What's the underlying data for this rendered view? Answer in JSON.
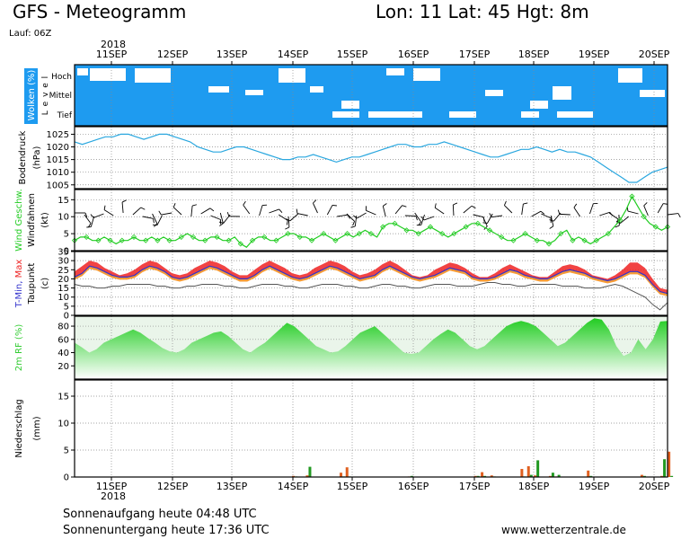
{
  "header": {
    "title": "GFS - Meteogramm",
    "location": "Lon: 11 Lat: 45 Hgt: 8m",
    "run": "Lauf: 06Z"
  },
  "footer": {
    "sunrise": "Sonnenaufgang heute 04:48 UTC",
    "sunset": "Sonnenuntergang heute 17:36 UTC",
    "source": "www.wetterzentrale.de"
  },
  "chart_data": {
    "type": "line",
    "year_label": "2018",
    "dates": [
      "11SEP",
      "12SEP",
      "13SEP",
      "14SEP",
      "15SEP",
      "16SEP",
      "17SEP",
      "18SEP",
      "19SEP",
      "20SEP"
    ],
    "colors": {
      "cloud": "#1E9BF0",
      "pressure": "#2AA7DF",
      "wind": "#22CC22",
      "tmax": "#EE2222",
      "tmin": "#3333CC",
      "taupunkt": "#555555",
      "orange": "#F59020",
      "rh": "#33CC33",
      "precip_orange": "#E06020",
      "precip_green": "#229922"
    },
    "panels": [
      {
        "id": "wolken",
        "ylabel": "Wolken (%)",
        "ylabel2": "L e v e l",
        "levels": [
          "Hoch",
          "Mittel",
          "Tief"
        ]
      },
      {
        "id": "bodendruck",
        "ylabel": "Bodendruck",
        "unit": "(hPa)",
        "yticks": [
          1005,
          1010,
          1015,
          1020,
          1025
        ],
        "ylim": [
          1003.5,
          1028
        ]
      },
      {
        "id": "wind",
        "ylabel": "Wind Geschw.",
        "ylabel2": "Windfahnen",
        "unit": "(kt)",
        "yticks": [
          0,
          5,
          10,
          15
        ],
        "ylim": [
          0,
          18
        ]
      },
      {
        "id": "temp",
        "ylabel": "T-Min, Max",
        "ylabel2": "Taupunkt",
        "unit": "(c)",
        "yticks": [
          0,
          5,
          10,
          15,
          20,
          25,
          30,
          35
        ],
        "ylim": [
          0,
          35
        ]
      },
      {
        "id": "rf",
        "ylabel": "2m RF (%)",
        "yticks": [
          20,
          40,
          60,
          80
        ],
        "ylim": [
          0,
          95
        ]
      },
      {
        "id": "niederschlag",
        "ylabel": "Niederschlag",
        "unit": "(mm)",
        "yticks": [
          0,
          5,
          10,
          15
        ],
        "ylim": [
          0,
          18
        ]
      }
    ],
    "pressure": [
      1022,
      1021,
      1022,
      1023,
      1024,
      1024,
      1025,
      1025,
      1024,
      1023,
      1024,
      1025,
      1025,
      1024,
      1023,
      1022,
      1020,
      1019,
      1018,
      1018,
      1019,
      1020,
      1020,
      1019,
      1018,
      1017,
      1016,
      1015,
      1015,
      1016,
      1016,
      1017,
      1016,
      1015,
      1014,
      1015,
      1016,
      1016,
      1017,
      1018,
      1019,
      1020,
      1021,
      1021,
      1020,
      1020,
      1021,
      1021,
      1022,
      1021,
      1020,
      1019,
      1018,
      1017,
      1016,
      1016,
      1017,
      1018,
      1019,
      1019,
      1020,
      1019,
      1018,
      1019,
      1018,
      1018,
      1017,
      1016,
      1014,
      1012,
      1010,
      1008,
      1006,
      1006,
      1008,
      1010,
      1011,
      1012
    ],
    "wind": [
      3,
      4,
      4,
      3,
      3,
      4,
      3,
      2,
      3,
      3,
      4,
      3,
      3,
      4,
      3,
      4,
      3,
      3,
      4,
      5,
      4,
      3,
      3,
      4,
      4,
      3,
      3,
      4,
      2,
      1,
      3,
      4,
      4,
      3,
      3,
      4,
      5,
      5,
      4,
      4,
      3,
      4,
      5,
      4,
      3,
      4,
      5,
      4,
      5,
      6,
      5,
      4,
      7,
      8,
      8,
      7,
      6,
      6,
      5,
      6,
      7,
      6,
      5,
      4,
      5,
      6,
      7,
      8,
      8,
      7,
      6,
      5,
      4,
      3,
      3,
      4,
      5,
      4,
      3,
      3,
      2,
      3,
      5,
      6,
      3,
      4,
      3,
      2,
      3,
      4,
      5,
      7,
      9,
      12,
      16,
      13,
      10,
      8,
      7,
      6,
      7
    ],
    "tmax": [
      24,
      27,
      30,
      29,
      26,
      24,
      22,
      23,
      25,
      28,
      30,
      29,
      26,
      23,
      22,
      23,
      26,
      28,
      30,
      29,
      27,
      24,
      22,
      22,
      25,
      28,
      30,
      28,
      26,
      23,
      22,
      23,
      26,
      28,
      30,
      29,
      27,
      24,
      22,
      23,
      25,
      28,
      30,
      28,
      25,
      22,
      21,
      22,
      25,
      27,
      29,
      28,
      26,
      23,
      21,
      21,
      23,
      26,
      28,
      26,
      24,
      22,
      21,
      21,
      24,
      27,
      28,
      27,
      25,
      22,
      21,
      20,
      22,
      25,
      29,
      29,
      26,
      20,
      15,
      14
    ],
    "tmin": [
      21,
      23,
      27,
      26,
      24,
      22,
      21,
      21,
      22,
      25,
      27,
      26,
      24,
      21,
      20,
      21,
      23,
      25,
      27,
      26,
      24,
      22,
      20,
      20,
      22,
      25,
      27,
      25,
      23,
      21,
      20,
      21,
      23,
      25,
      27,
      26,
      24,
      22,
      20,
      21,
      22,
      25,
      27,
      25,
      23,
      21,
      20,
      21,
      22,
      24,
      26,
      25,
      24,
      21,
      20,
      20,
      21,
      23,
      25,
      24,
      22,
      21,
      20,
      20,
      22,
      24,
      25,
      24,
      23,
      21,
      20,
      19,
      20,
      22,
      24,
      24,
      22,
      17,
      13,
      12
    ],
    "taupunkt": [
      17,
      16,
      16,
      15,
      15,
      16,
      16,
      17,
      17,
      17,
      17,
      16,
      16,
      15,
      15,
      16,
      16,
      17,
      17,
      17,
      16,
      16,
      15,
      15,
      16,
      17,
      17,
      17,
      16,
      16,
      15,
      15,
      16,
      17,
      17,
      17,
      16,
      16,
      15,
      15,
      16,
      17,
      17,
      16,
      16,
      15,
      15,
      16,
      17,
      17,
      17,
      16,
      16,
      16,
      17,
      18,
      18,
      17,
      17,
      16,
      16,
      17,
      17,
      17,
      17,
      16,
      16,
      16,
      15,
      15,
      15,
      16,
      17,
      16,
      14,
      12,
      10,
      6,
      3,
      7
    ],
    "rh": [
      55,
      48,
      40,
      45,
      55,
      60,
      65,
      70,
      75,
      70,
      62,
      55,
      47,
      42,
      40,
      45,
      55,
      60,
      65,
      70,
      72,
      65,
      55,
      45,
      40,
      48,
      55,
      65,
      75,
      85,
      80,
      70,
      60,
      50,
      45,
      40,
      42,
      50,
      60,
      70,
      75,
      80,
      70,
      60,
      50,
      40,
      38,
      40,
      50,
      60,
      68,
      75,
      70,
      60,
      50,
      45,
      50,
      60,
      70,
      80,
      85,
      88,
      85,
      80,
      70,
      60,
      50,
      55,
      65,
      75,
      85,
      92,
      90,
      75,
      50,
      35,
      40,
      60,
      45,
      60,
      87,
      88
    ],
    "precip": [
      {
        "x": 3.04,
        "orange": 0.2,
        "green": 0.1
      },
      {
        "x": 3.27,
        "orange": 0.3,
        "green": 1.9
      },
      {
        "x": 3.83,
        "orange": 0.8,
        "green": 0.1
      },
      {
        "x": 3.93,
        "orange": 1.8,
        "green": 0.1
      },
      {
        "x": 4.96,
        "orange": 0.1,
        "green": 0.2
      },
      {
        "x": 6.06,
        "orange": 0.2,
        "green": 0.2
      },
      {
        "x": 6.17,
        "orange": 0.9,
        "green": 0.2
      },
      {
        "x": 6.33,
        "orange": 0.3,
        "green": 0.1
      },
      {
        "x": 6.83,
        "orange": 1.5,
        "green": 0.1
      },
      {
        "x": 6.94,
        "orange": 2.0,
        "green": 0.4
      },
      {
        "x": 7.05,
        "orange": 0.3,
        "green": 3.1
      },
      {
        "x": 7.3,
        "orange": 0.2,
        "green": 0.8
      },
      {
        "x": 7.4,
        "orange": 0.1,
        "green": 0.4
      },
      {
        "x": 7.93,
        "orange": 1.2,
        "green": 0.2
      },
      {
        "x": 8.82,
        "orange": 0.4,
        "green": 0.2
      },
      {
        "x": 9.15,
        "orange": 0.2,
        "green": 3.3
      },
      {
        "x": 9.27,
        "orange": 4.7,
        "green": 0.2
      }
    ]
  }
}
